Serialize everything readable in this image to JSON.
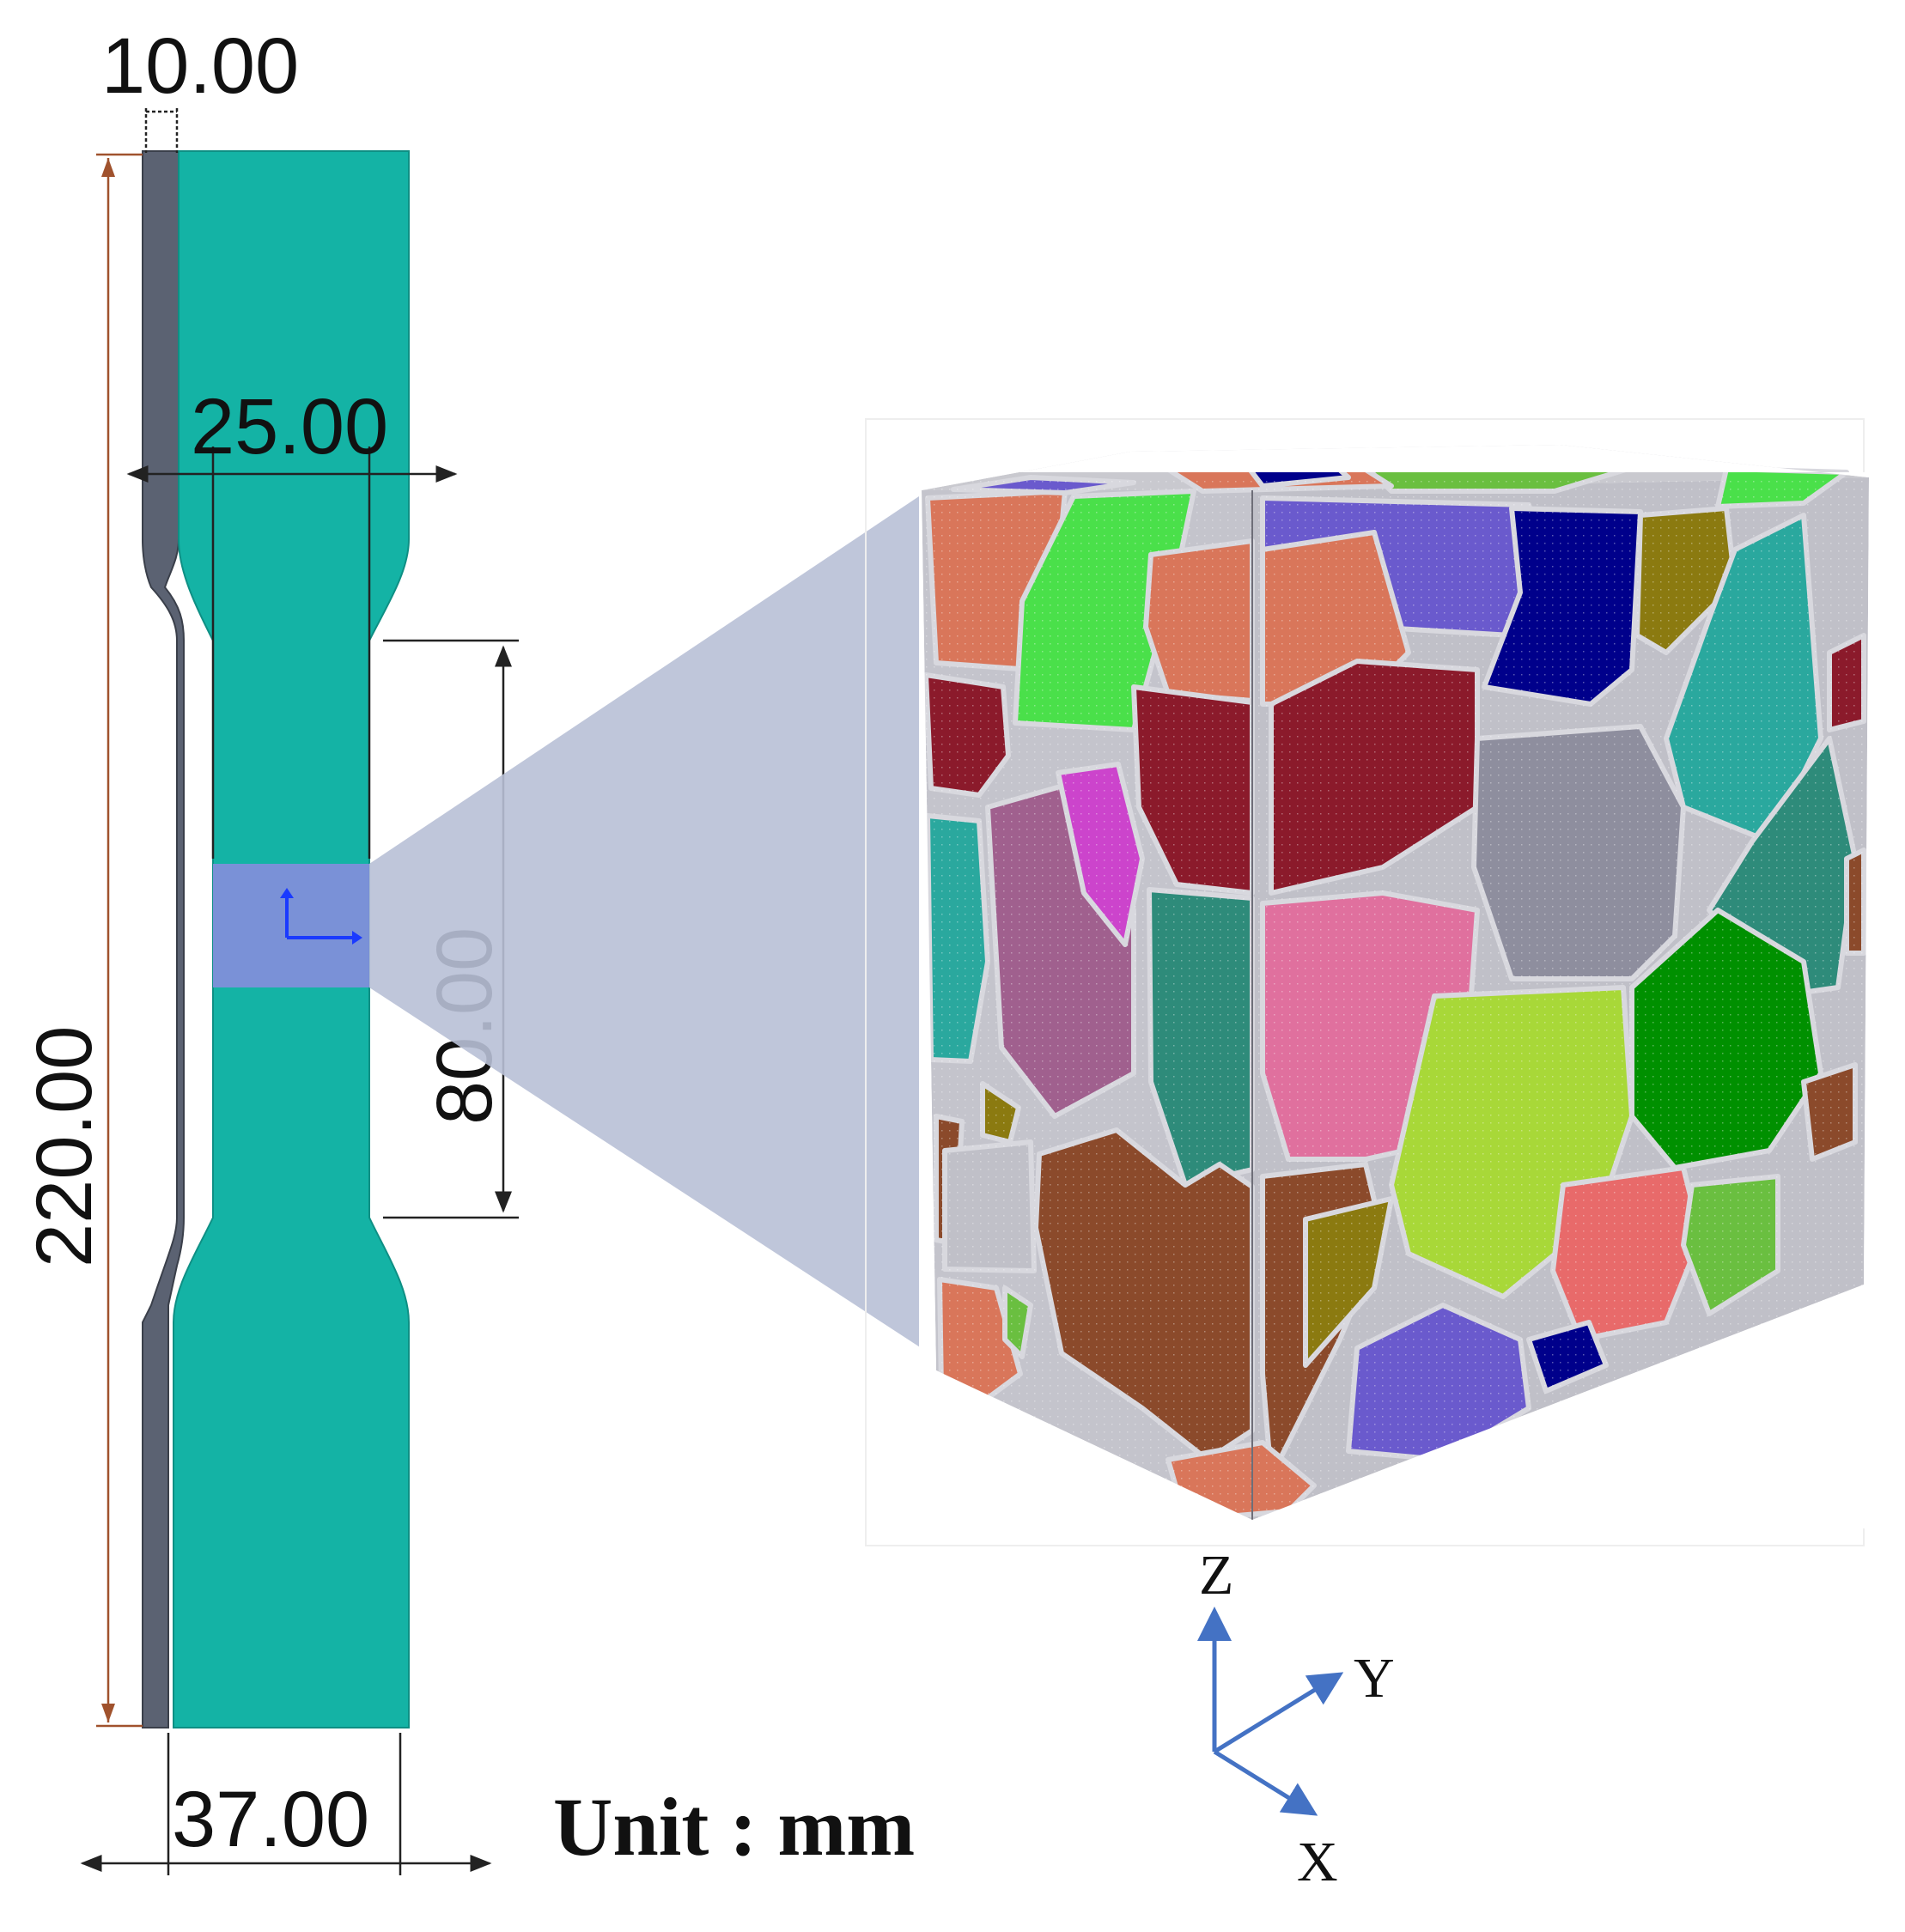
{
  "specimen": {
    "dimensions": {
      "thickness": "10.00",
      "gauge_width": "25.00",
      "gauge_length": "80.00",
      "total_length": "220.00",
      "grip_width": "37.00"
    },
    "colors": {
      "face": "#14b3a5",
      "side": "#5b6272",
      "highlight": "#7f8fd9",
      "dim_line": "#222222",
      "length_line": "#a0522d"
    }
  },
  "unit_label": "Unit : mm",
  "axes": {
    "z": "Z",
    "y": "Y",
    "x": "X",
    "color": "#4472c4"
  },
  "zoom_cone_color": "#b8c0d6",
  "grain_colors": [
    "#d9765a",
    "#4ae04a",
    "#6a5acd",
    "#8b1a2b",
    "#00008b",
    "#8e8e9e",
    "#2aa89e",
    "#2e8b7a",
    "#e0709e",
    "#a8d838",
    "#009000",
    "#8b4a2b",
    "#a0608e",
    "#cc44cc",
    "#8b7a10",
    "#e86a6a",
    "#6abf40",
    "#c0c0c8"
  ]
}
